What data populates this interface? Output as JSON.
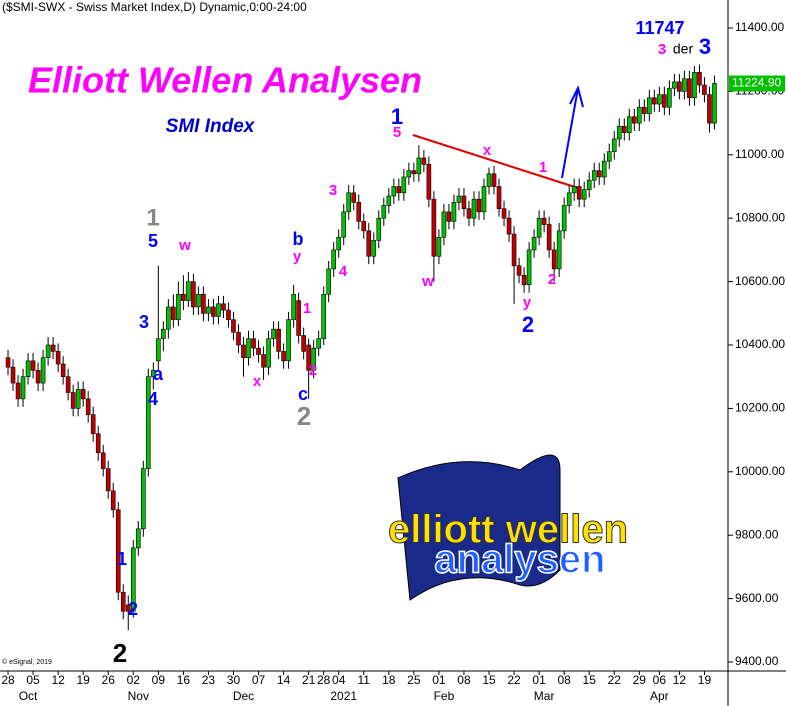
{
  "chart_data": {
    "type": "candlestick",
    "header": "($SMI-SWX - Swiss Market Index,D) Dynamic,0:00-24:00",
    "title": "Elliott Wellen Analysen",
    "subtitle": "SMI Index",
    "copyright": "© eSignal, 2019",
    "logo": [
      "elliott wellen",
      "analysen"
    ],
    "up_color": "#00c000",
    "down_color": "#c00000",
    "last_value_label": "11224.90",
    "last_label_color": "#00c000",
    "ylim": [
      9400,
      11400
    ],
    "xlim": [
      -1.6,
      143.7
    ],
    "yticks": [
      {
        "value": 9400,
        "label": "9400.00"
      },
      {
        "value": 9600,
        "label": "9600.00"
      },
      {
        "value": 9800,
        "label": "9800.00"
      },
      {
        "value": 10000,
        "label": "10000.00"
      },
      {
        "value": 10200,
        "label": "10200.00"
      },
      {
        "value": 10400,
        "label": "10400.00"
      },
      {
        "value": 10600,
        "label": "10600.00"
      },
      {
        "value": 10800,
        "label": "10800.00"
      },
      {
        "value": 11000,
        "label": "11000.00"
      },
      {
        "value": 11200,
        "label": "11200.00"
      },
      {
        "value": 11400,
        "label": "11400.00"
      }
    ],
    "xticks": [
      {
        "value": 0,
        "label": "28"
      },
      {
        "value": 5,
        "label": "05"
      },
      {
        "value": 10,
        "label": "12"
      },
      {
        "value": 15,
        "label": "19"
      },
      {
        "value": 20,
        "label": "26"
      },
      {
        "value": 25,
        "label": "02"
      },
      {
        "value": 30,
        "label": "09"
      },
      {
        "value": 35,
        "label": "16"
      },
      {
        "value": 40,
        "label": "23"
      },
      {
        "value": 45,
        "label": "30"
      },
      {
        "value": 50,
        "label": "07"
      },
      {
        "value": 55,
        "label": "14"
      },
      {
        "value": 60,
        "label": "21"
      },
      {
        "value": 63,
        "label": "28"
      },
      {
        "value": 66,
        "label": "04"
      },
      {
        "value": 71,
        "label": "11"
      },
      {
        "value": 76,
        "label": "18"
      },
      {
        "value": 81,
        "label": "25"
      },
      {
        "value": 86,
        "label": "01"
      },
      {
        "value": 91,
        "label": "08"
      },
      {
        "value": 96,
        "label": "15"
      },
      {
        "value": 101,
        "label": "22"
      },
      {
        "value": 106,
        "label": "01"
      },
      {
        "value": 111,
        "label": "08"
      },
      {
        "value": 116,
        "label": "15"
      },
      {
        "value": 121,
        "label": "22"
      },
      {
        "value": 126,
        "label": "29"
      },
      {
        "value": 130,
        "label": "06"
      },
      {
        "value": 134,
        "label": "12"
      },
      {
        "value": 139,
        "label": "19"
      }
    ],
    "month_labels": [
      {
        "value": 4,
        "label": "Oct"
      },
      {
        "value": 26,
        "label": "Nov"
      },
      {
        "value": 47,
        "label": "Dec"
      },
      {
        "value": 67,
        "label": "2021"
      },
      {
        "value": 87,
        "label": "Feb"
      },
      {
        "value": 107,
        "label": "Mar"
      },
      {
        "value": 130,
        "label": "Apr"
      }
    ],
    "annotations": [
      "1",
      "5",
      "w",
      "3",
      "a",
      "4",
      "1",
      "2",
      "2",
      "x",
      "b",
      "y",
      "1",
      "2",
      "c",
      "2",
      "3",
      "4",
      "1",
      "5",
      "w",
      "x",
      "1",
      "2",
      "y",
      "2",
      "11747",
      "3",
      "der",
      "3"
    ],
    "ohlc": [
      [
        10360,
        10385,
        10305,
        10330
      ],
      [
        10330,
        10355,
        10255,
        10280
      ],
      [
        10280,
        10305,
        10205,
        10230
      ],
      [
        10230,
        10325,
        10205,
        10300
      ],
      [
        10300,
        10375,
        10275,
        10350
      ],
      [
        10350,
        10375,
        10295,
        10320
      ],
      [
        10320,
        10345,
        10255,
        10280
      ],
      [
        10280,
        10385,
        10255,
        10360
      ],
      [
        10360,
        10425,
        10335,
        10400
      ],
      [
        10400,
        10425,
        10355,
        10380
      ],
      [
        10380,
        10405,
        10315,
        10340
      ],
      [
        10340,
        10365,
        10275,
        10300
      ],
      [
        10300,
        10325,
        10225,
        10250
      ],
      [
        10250,
        10275,
        10175,
        10200
      ],
      [
        10200,
        10285,
        10175,
        10260
      ],
      [
        10260,
        10285,
        10205,
        10230
      ],
      [
        10230,
        10255,
        10155,
        10180
      ],
      [
        10180,
        10205,
        10095,
        10120
      ],
      [
        10120,
        10145,
        10035,
        10060
      ],
      [
        10060,
        10085,
        9985,
        10010
      ],
      [
        10010,
        10035,
        9915,
        9940
      ],
      [
        9940,
        9965,
        9855,
        9880
      ],
      [
        9880,
        9905,
        9595,
        9620
      ],
      [
        9620,
        9645,
        9535,
        9560
      ],
      [
        9580,
        9610,
        9500,
        9560
      ],
      [
        9560,
        9785,
        9540,
        9760
      ],
      [
        9760,
        9845,
        9735,
        9820
      ],
      [
        9820,
        10035,
        9795,
        10010
      ],
      [
        10010,
        10325,
        9985,
        10300
      ],
      [
        10300,
        10345,
        10260,
        10320
      ],
      [
        10350,
        10650,
        10320,
        10420
      ],
      [
        10420,
        10475,
        10380,
        10450
      ],
      [
        10450,
        10545,
        10420,
        10520
      ],
      [
        10520,
        10560,
        10455,
        10480
      ],
      [
        10480,
        10600,
        10460,
        10560
      ],
      [
        10560,
        10620,
        10510,
        10540
      ],
      [
        10540,
        10630,
        10520,
        10600
      ],
      [
        10600,
        10625,
        10495,
        10520
      ],
      [
        10520,
        10585,
        10495,
        10560
      ],
      [
        10560,
        10585,
        10475,
        10500
      ],
      [
        10500,
        10545,
        10475,
        10520
      ],
      [
        10520,
        10545,
        10465,
        10490
      ],
      [
        10490,
        10555,
        10465,
        10530
      ],
      [
        10530,
        10555,
        10485,
        10510
      ],
      [
        10510,
        10535,
        10455,
        10480
      ],
      [
        10480,
        10505,
        10415,
        10440
      ],
      [
        10440,
        10465,
        10375,
        10400
      ],
      [
        10400,
        10425,
        10300,
        10360
      ],
      [
        10360,
        10445,
        10335,
        10420
      ],
      [
        10420,
        10445,
        10365,
        10390
      ],
      [
        10390,
        10415,
        10345,
        10370
      ],
      [
        10370,
        10395,
        10290,
        10330
      ],
      [
        10330,
        10445,
        10305,
        10420
      ],
      [
        10420,
        10475,
        10395,
        10450
      ],
      [
        10450,
        10475,
        10355,
        10380
      ],
      [
        10380,
        10405,
        10325,
        10350
      ],
      [
        10350,
        10505,
        10325,
        10480
      ],
      [
        10480,
        10590,
        10455,
        10560
      ],
      [
        10540,
        10565,
        10405,
        10430
      ],
      [
        10430,
        10455,
        10355,
        10380
      ],
      [
        10400,
        10420,
        10230,
        10320
      ],
      [
        10320,
        10415,
        10295,
        10390
      ],
      [
        10390,
        10445,
        10365,
        10420
      ],
      [
        10420,
        10585,
        10400,
        10560
      ],
      [
        10560,
        10665,
        10535,
        10640
      ],
      [
        10640,
        10725,
        10615,
        10700
      ],
      [
        10700,
        10765,
        10675,
        10740
      ],
      [
        10740,
        10845,
        10715,
        10820
      ],
      [
        10820,
        10905,
        10795,
        10880
      ],
      [
        10880,
        10905,
        10825,
        10850
      ],
      [
        10850,
        10875,
        10765,
        10790
      ],
      [
        10790,
        10815,
        10735,
        10760
      ],
      [
        10760,
        10785,
        10655,
        10680
      ],
      [
        10680,
        10755,
        10655,
        10730
      ],
      [
        10730,
        10825,
        10705,
        10800
      ],
      [
        10800,
        10865,
        10775,
        10840
      ],
      [
        10840,
        10895,
        10815,
        10870
      ],
      [
        10870,
        10925,
        10845,
        10900
      ],
      [
        10900,
        10925,
        10855,
        10880
      ],
      [
        10880,
        10955,
        10855,
        10930
      ],
      [
        10930,
        10975,
        10905,
        10950
      ],
      [
        10950,
        10975,
        10915,
        10940
      ],
      [
        10940,
        11030,
        10915,
        10990
      ],
      [
        10990,
        11015,
        10945,
        10970
      ],
      [
        10970,
        10995,
        10835,
        10860
      ],
      [
        10860,
        10885,
        10600,
        10680
      ],
      [
        10680,
        10765,
        10655,
        10740
      ],
      [
        10740,
        10845,
        10715,
        10820
      ],
      [
        10820,
        10845,
        10765,
        10790
      ],
      [
        10790,
        10875,
        10765,
        10850
      ],
      [
        10850,
        10895,
        10825,
        10870
      ],
      [
        10870,
        10895,
        10805,
        10830
      ],
      [
        10830,
        10855,
        10775,
        10800
      ],
      [
        10800,
        10885,
        10775,
        10860
      ],
      [
        10860,
        10885,
        10795,
        10820
      ],
      [
        10820,
        10925,
        10795,
        10900
      ],
      [
        10900,
        10960,
        10875,
        10940
      ],
      [
        10940,
        10965,
        10875,
        10900
      ],
      [
        10900,
        10925,
        10805,
        10830
      ],
      [
        10830,
        10855,
        10775,
        10800
      ],
      [
        10800,
        10825,
        10725,
        10750
      ],
      [
        10750,
        10775,
        10530,
        10650
      ],
      [
        10650,
        10675,
        10595,
        10620
      ],
      [
        10620,
        10645,
        10565,
        10590
      ],
      [
        10590,
        10725,
        10565,
        10700
      ],
      [
        10700,
        10765,
        10675,
        10740
      ],
      [
        10740,
        10825,
        10715,
        10800
      ],
      [
        10800,
        10825,
        10755,
        10780
      ],
      [
        10780,
        10805,
        10675,
        10700
      ],
      [
        10700,
        10725,
        10600,
        10640
      ],
      [
        10640,
        10785,
        10615,
        10760
      ],
      [
        10760,
        10865,
        10735,
        10840
      ],
      [
        10840,
        10905,
        10815,
        10880
      ],
      [
        10880,
        10925,
        10855,
        10900
      ],
      [
        10900,
        10925,
        10835,
        10860
      ],
      [
        10860,
        10915,
        10835,
        10890
      ],
      [
        10890,
        10945,
        10865,
        10920
      ],
      [
        10920,
        10975,
        10895,
        10950
      ],
      [
        10950,
        10975,
        10905,
        10930
      ],
      [
        10930,
        11005,
        10905,
        10980
      ],
      [
        10980,
        11035,
        10955,
        11010
      ],
      [
        11010,
        11075,
        10985,
        11050
      ],
      [
        11050,
        11115,
        11025,
        11090
      ],
      [
        11090,
        11115,
        11045,
        11070
      ],
      [
        11070,
        11145,
        11045,
        11120
      ],
      [
        11120,
        11145,
        11075,
        11100
      ],
      [
        11100,
        11175,
        11075,
        11150
      ],
      [
        11150,
        11175,
        11105,
        11130
      ],
      [
        11130,
        11205,
        11105,
        11180
      ],
      [
        11180,
        11205,
        11135,
        11160
      ],
      [
        11160,
        11215,
        11135,
        11190
      ],
      [
        11190,
        11215,
        11125,
        11150
      ],
      [
        11150,
        11235,
        11125,
        11210
      ],
      [
        11210,
        11255,
        11185,
        11230
      ],
      [
        11230,
        11255,
        11175,
        11200
      ],
      [
        11200,
        11265,
        11175,
        11240
      ],
      [
        11240,
        11265,
        11155,
        11180
      ],
      [
        11180,
        11280,
        11155,
        11260
      ],
      [
        11260,
        11285,
        11195,
        11220
      ],
      [
        11220,
        11245,
        11165,
        11190
      ],
      [
        11190,
        11215,
        11070,
        11100
      ],
      [
        11100,
        11250,
        11080,
        11224.9
      ]
    ]
  }
}
